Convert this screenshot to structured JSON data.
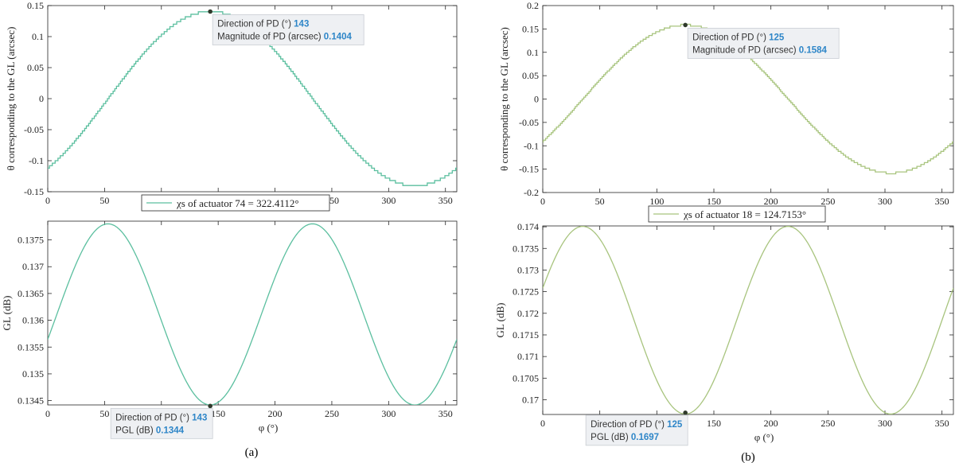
{
  "captions": {
    "a": "(a)",
    "b": "(b)"
  },
  "colors": {
    "series_a": "#5bbf9f",
    "series_b": "#a8c47e",
    "marker": "#2f3a2b",
    "tip_value": "#2e86c8"
  },
  "chart_data": [
    {
      "id": "a-top",
      "type": "line",
      "panel": "a",
      "xlabel": "",
      "ylabel": "θ corresponding to the GL (arcsec)",
      "xlim": [
        0,
        360
      ],
      "ylim": [
        -0.15,
        0.15
      ],
      "xticks": [
        "0",
        "50",
        "100",
        "150",
        "200",
        "250",
        "300",
        "350"
      ],
      "yticks": [
        "-0.15",
        "-0.1",
        "-0.05",
        "0",
        "0.05",
        "0.1",
        "0.15"
      ],
      "grid": false,
      "legend_position": "bottom-center",
      "series": [
        {
          "name": "χs of actuator 74 = 322.4112°",
          "amplitude": 0.1404,
          "peak_deg": 143,
          "style": "staircase",
          "step": 0.004
        }
      ],
      "datatip": {
        "x": 143,
        "y": 0.1404,
        "line1_label": "Direction of PD (°)",
        "line1_value": "143",
        "line2_label": "Magnitude of PD (arcsec)",
        "line2_value": "0.1404"
      }
    },
    {
      "id": "a-bottom",
      "type": "line",
      "panel": "a",
      "xlabel": "φ (°)",
      "ylabel": "GL (dB)",
      "xlim": [
        0,
        360
      ],
      "ylim": [
        0.13442,
        0.13785
      ],
      "xticks": [
        "0",
        "50",
        "100",
        "150",
        "200",
        "250",
        "300",
        "350"
      ],
      "yticks": [
        "0.1345",
        "0.135",
        "0.1355",
        "0.136",
        "0.1365",
        "0.137",
        "0.1375"
      ],
      "yticks_values": [
        0.1345,
        0.135,
        0.1355,
        0.136,
        0.1365,
        0.137,
        0.1375
      ],
      "grid": false,
      "series": [
        {
          "name": "",
          "mean": 0.13611,
          "amplitude": 0.00169,
          "min_deg": 143,
          "period": 180
        }
      ],
      "datatip": {
        "x": 143,
        "y": 0.1344,
        "line1_label": "Direction of PD (°)",
        "line1_value": "143",
        "line2_label": "PGL (dB)",
        "line2_value": "0.1344"
      }
    },
    {
      "id": "b-top",
      "type": "line",
      "panel": "b",
      "xlabel": "",
      "ylabel": "θ corresponding to the GL (arcsec)",
      "xlim": [
        0,
        360
      ],
      "ylim": [
        -0.2,
        0.2
      ],
      "xticks": [
        "0",
        "50",
        "100",
        "150",
        "200",
        "250",
        "300",
        "350"
      ],
      "yticks": [
        "-0.2",
        "-0.15",
        "-0.1",
        "-0.05",
        "0",
        "0.05",
        "0.1",
        "0.15",
        "0.2"
      ],
      "grid": false,
      "legend_position": "bottom-center",
      "series": [
        {
          "name": "χs of actuator 18 = 124.7153°",
          "amplitude": 0.1584,
          "peak_deg": 125,
          "style": "staircase",
          "step": 0.004
        }
      ],
      "datatip": {
        "x": 125,
        "y": 0.1584,
        "line1_label": "Direction of PD (°)",
        "line1_value": "125",
        "line2_label": "Magnitude of PD (arcsec)",
        "line2_value": "0.1584"
      }
    },
    {
      "id": "b-bottom",
      "type": "line",
      "panel": "b",
      "xlabel": "φ (°)",
      "ylabel": "GL (dB)",
      "xlim": [
        0,
        360
      ],
      "ylim": [
        0.16966,
        0.17402
      ],
      "xticks": [
        "0",
        "50",
        "100",
        "150",
        "200",
        "250",
        "300",
        "350"
      ],
      "yticks": [
        "0.17",
        "0.1705",
        "0.171",
        "0.1715",
        "0.172",
        "0.1725",
        "0.173",
        "0.1735",
        "0.174"
      ],
      "yticks_values": [
        0.17,
        0.1705,
        0.171,
        0.1715,
        0.172,
        0.1725,
        0.173,
        0.1735,
        0.174
      ],
      "grid": false,
      "series": [
        {
          "name": "",
          "mean": 0.17184,
          "amplitude": 0.00217,
          "min_deg": 125,
          "period": 180
        }
      ],
      "datatip": {
        "x": 125,
        "y": 0.1697,
        "line1_label": "Direction of PD (°)",
        "line1_value": "125",
        "line2_label": "PGL (dB)",
        "line2_value": "0.1697"
      }
    }
  ]
}
